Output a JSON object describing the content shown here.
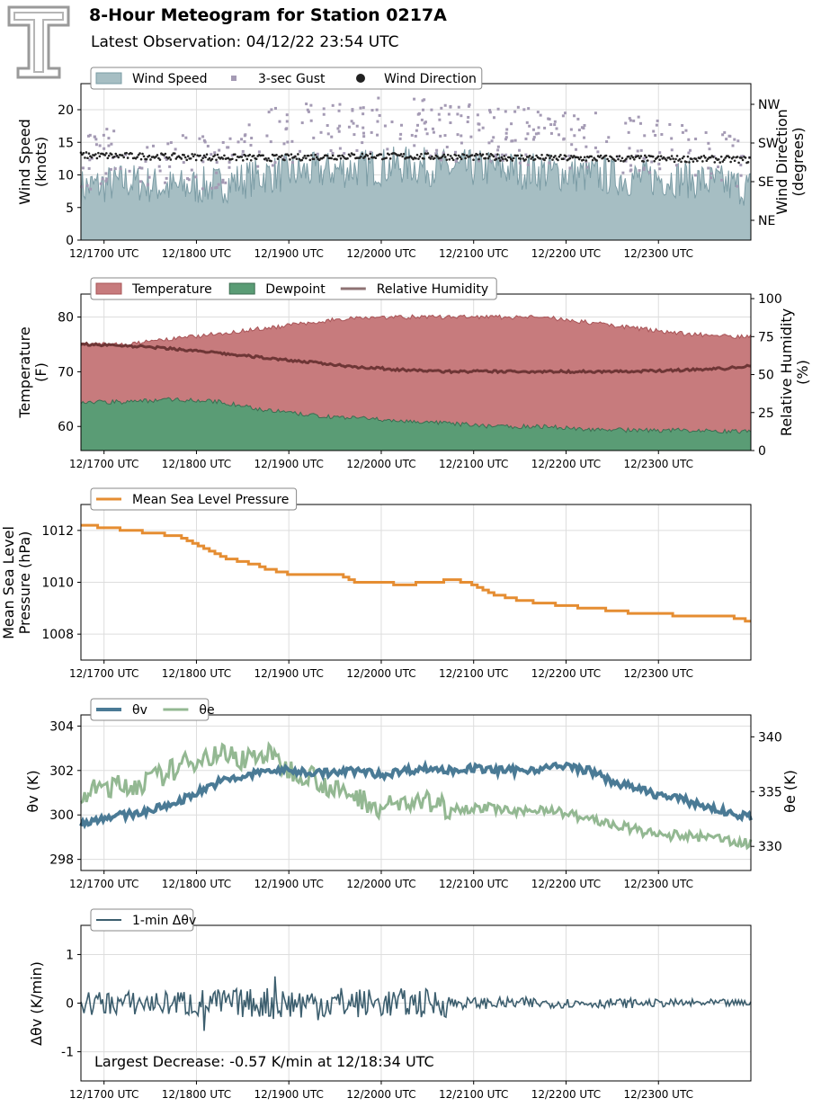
{
  "header": {
    "title": "8-Hour Meteogram for Station 0217A",
    "subtitle": "Latest Observation: 04/12/22 23:54 UTC"
  },
  "colors": {
    "wind_speed": "#7b9ca5",
    "wind_speed_fill": "#a6bec3",
    "gust": "#a49ab4",
    "direction": "#222222",
    "temperature": "#c77b7d",
    "dewpoint": "#5a9c75",
    "humidity": "#6e3636",
    "pressure": "#e58d32",
    "theta_v": "#4a7a95",
    "theta_e": "#93b892",
    "dtheta": "#3c5e6e",
    "annotation": "#23506b"
  },
  "x_ticks": [
    "12/1700 UTC",
    "12/1800 UTC",
    "12/1900 UTC",
    "12/2000 UTC",
    "12/2100 UTC",
    "12/2200 UTC",
    "12/2300 UTC"
  ],
  "chart_data": [
    {
      "type": "area",
      "panel": "wind",
      "ylabel": "Wind Speed\n(knots)",
      "y2label": "Wind Direction\n(degrees)",
      "ylim": [
        0,
        24
      ],
      "yticks": [
        0,
        5,
        10,
        15,
        20
      ],
      "y2ticks": [
        "NE",
        "SE",
        "SW",
        "NW"
      ],
      "legend": [
        "Wind Speed",
        "3-sec Gust",
        "Wind Direction"
      ],
      "legend_loc": "top-left",
      "series": [
        {
          "name": "Wind Speed",
          "kind": "area",
          "x": [
            0,
            0.5,
            1,
            1.5,
            2,
            2.5,
            3,
            3.5,
            4,
            4.5,
            5,
            5.5,
            6,
            6.5,
            7,
            7.25
          ],
          "values": [
            8,
            9,
            8,
            8.5,
            10,
            10.5,
            11,
            11.5,
            11,
            11,
            10.5,
            10,
            9.5,
            9.5,
            8.5,
            8
          ]
        },
        {
          "name": "3-sec Gust",
          "kind": "scatter",
          "x": [
            0,
            0.5,
            1,
            1.5,
            2,
            2.5,
            3,
            3.5,
            4,
            4.5,
            5,
            5.5,
            6,
            6.5,
            7,
            7.25
          ],
          "values": [
            12,
            14,
            12,
            13,
            16,
            17,
            18,
            18,
            17,
            17,
            16,
            16,
            15,
            15,
            13,
            12
          ]
        },
        {
          "name": "Wind Direction",
          "kind": "scatter",
          "x": [
            0,
            1,
            2,
            3,
            4,
            5,
            6,
            7,
            7.25
          ],
          "values": [
            13,
            12.8,
            12.6,
            12.9,
            12.8,
            12.6,
            12.5,
            12.4,
            12.3
          ]
        }
      ]
    },
    {
      "type": "area",
      "panel": "temperature",
      "ylabel": "Temperature\n(F)",
      "y2label": "Relative Humidity\n(%)",
      "ylim": [
        55.6,
        84.2
      ],
      "yticks": [
        60,
        70,
        80
      ],
      "y2lim": [
        0,
        103
      ],
      "y2ticks": [
        0,
        25,
        50,
        75,
        100
      ],
      "legend": [
        "Temperature",
        "Dewpoint",
        "Relative Humidity"
      ],
      "legend_loc": "top-left",
      "series": [
        {
          "name": "Temperature",
          "x": [
            0,
            0.5,
            1,
            1.5,
            2,
            2.5,
            3,
            3.5,
            4,
            4.5,
            5,
            5.5,
            6,
            6.5,
            7,
            7.25
          ],
          "values": [
            75,
            75,
            76,
            77,
            78,
            79,
            80,
            80,
            80,
            80,
            80,
            79,
            78,
            77,
            76.5,
            76.5
          ]
        },
        {
          "name": "Dewpoint",
          "x": [
            0,
            0.5,
            1,
            1.5,
            2,
            2.5,
            3,
            3.5,
            4,
            4.5,
            5,
            5.5,
            6,
            6.5,
            7,
            7.25
          ],
          "values": [
            64.5,
            64.5,
            65,
            64.5,
            63,
            62,
            61.5,
            61,
            60.5,
            60,
            60,
            59.5,
            59.3,
            59.3,
            59.1,
            59
          ]
        },
        {
          "name": "Relative Humidity",
          "axis": "right",
          "x": [
            0,
            0.5,
            1,
            1.5,
            2,
            2.5,
            3,
            3.5,
            4,
            4.5,
            5,
            5.5,
            6,
            6.5,
            7,
            7.25
          ],
          "values": [
            70,
            69,
            67,
            64,
            61,
            58,
            55,
            53,
            52,
            52,
            52,
            52,
            52,
            53,
            54,
            56
          ]
        }
      ]
    },
    {
      "type": "line",
      "panel": "pressure",
      "ylabel": "Mean Sea Level\nPressure (hPa)",
      "ylim": [
        1007,
        1013
      ],
      "yticks": [
        1008,
        1010,
        1012
      ],
      "legend": [
        "Mean Sea Level Pressure"
      ],
      "legend_loc": "top-left",
      "series": [
        {
          "name": "Mean Sea Level Pressure",
          "x": [
            0,
            0.25,
            0.5,
            0.75,
            1,
            1.25,
            1.5,
            1.75,
            2,
            2.25,
            2.5,
            2.75,
            3,
            3.25,
            3.5,
            3.75,
            4,
            4.25,
            4.5,
            4.75,
            5,
            5.25,
            5.5,
            5.75,
            6,
            6.25,
            6.5,
            6.75,
            7,
            7.25
          ],
          "values": [
            1012.2,
            1012.1,
            1012.0,
            1011.9,
            1011.8,
            1011.4,
            1011.0,
            1010.8,
            1010.5,
            1010.3,
            1010.3,
            1010.3,
            1010.0,
            1010.0,
            1009.9,
            1010.0,
            1010.1,
            1009.9,
            1009.5,
            1009.3,
            1009.2,
            1009.1,
            1009.0,
            1008.9,
            1008.8,
            1008.8,
            1008.7,
            1008.7,
            1008.7,
            1008.5
          ]
        }
      ]
    },
    {
      "type": "line",
      "panel": "theta",
      "ylabel": "θv (K)",
      "y2label": "θe (K)",
      "ylim": [
        297.5,
        304.5
      ],
      "yticks": [
        298,
        300,
        302,
        304
      ],
      "y2lim": [
        327.8,
        342
      ],
      "y2ticks": [
        330,
        335,
        340
      ],
      "legend": [
        "θv",
        "θe"
      ],
      "legend_loc": "top-left",
      "series": [
        {
          "name": "θv",
          "x": [
            0,
            0.25,
            0.5,
            0.75,
            1,
            1.25,
            1.5,
            1.75,
            2,
            2.25,
            2.5,
            2.75,
            3,
            3.25,
            3.5,
            3.75,
            4,
            4.25,
            4.5,
            4.75,
            5,
            5.25,
            5.5,
            5.75,
            6,
            6.25,
            6.5,
            6.75,
            7,
            7.25
          ],
          "values": [
            299.6,
            299.9,
            300.0,
            300.2,
            300.5,
            301.0,
            301.5,
            301.7,
            302.0,
            302.0,
            301.9,
            301.9,
            302.0,
            301.8,
            302.0,
            302.1,
            302.0,
            302.1,
            302.0,
            302.0,
            302.1,
            302.2,
            302.0,
            301.5,
            301.2,
            300.9,
            300.7,
            300.4,
            300.1,
            299.9
          ]
        },
        {
          "name": "θe",
          "axis": "right",
          "x": [
            0,
            0.25,
            0.5,
            0.75,
            1,
            1.25,
            1.5,
            1.75,
            2,
            2.25,
            2.5,
            2.75,
            3,
            3.25,
            3.5,
            3.75,
            4,
            4.25,
            4.5,
            4.75,
            5,
            5.25,
            5.5,
            5.75,
            6,
            6.25,
            6.5,
            6.75,
            7,
            7.25
          ],
          "values": [
            334.5,
            335.5,
            335.5,
            336.0,
            337.0,
            338.0,
            338.5,
            338.0,
            338.5,
            337.0,
            336.5,
            335.0,
            334.5,
            333.5,
            334.0,
            334.0,
            333.5,
            333.5,
            333.5,
            333.0,
            333.5,
            333.0,
            332.5,
            332.0,
            331.5,
            331.0,
            331.0,
            330.8,
            330.6,
            330.2
          ]
        }
      ]
    },
    {
      "type": "line",
      "panel": "delta",
      "ylabel": "Δθv (K/min)",
      "ylim": [
        -1.6,
        1.6
      ],
      "yticks": [
        -1,
        0,
        1
      ],
      "legend": [
        "1-min Δθv"
      ],
      "legend_loc": "top-left",
      "annotation": "Largest Decrease: -0.57 K/min at 12/18:34 UTC",
      "series": [
        {
          "name": "1-min Δθv",
          "x_min": 0,
          "x_max": 7.25,
          "amplitude_by_hour": [
            0.25,
            0.3,
            0.35,
            0.3,
            0.12,
            0.1,
            0.08,
            0.07
          ]
        }
      ]
    }
  ]
}
